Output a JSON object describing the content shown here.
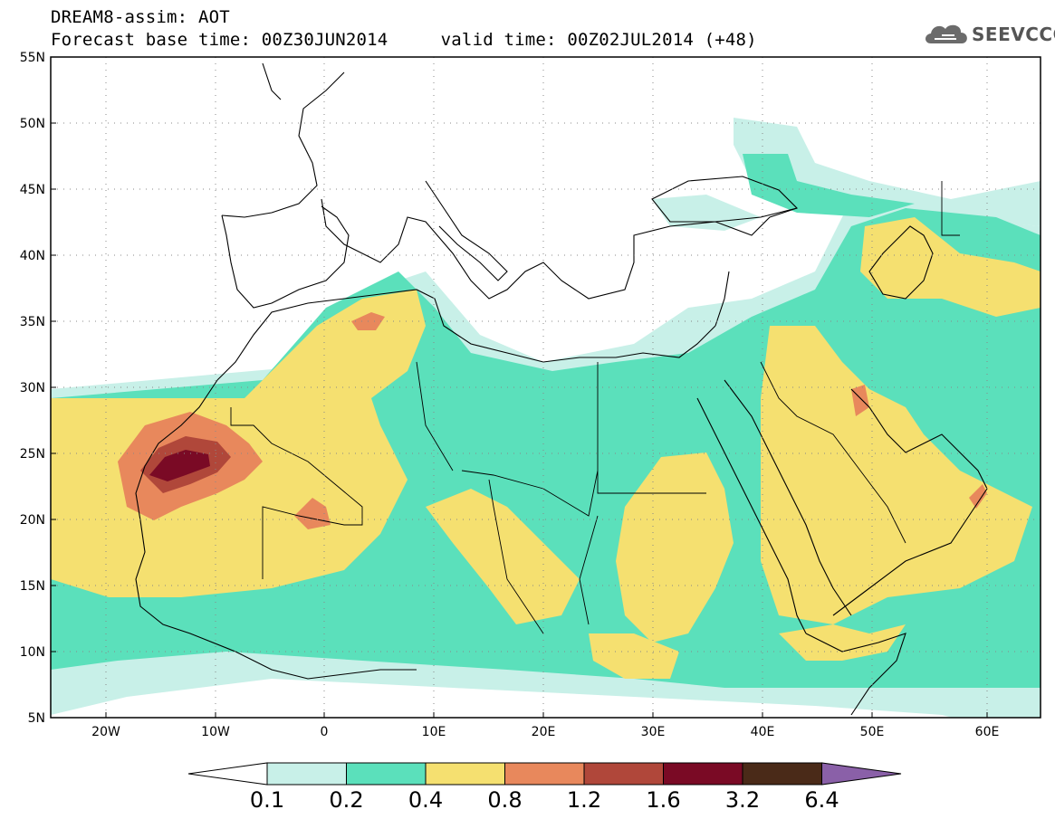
{
  "header": {
    "title": "DREAM8-assim: AOT",
    "base_time_label": "Forecast base time: 00Z30JUN2014",
    "valid_time_label": "valid time: 00Z02JUL2014 (+48)"
  },
  "logo": {
    "text": "SEEVCCC",
    "icon": "cloud-icon"
  },
  "map": {
    "lon_ticks": [
      "20W",
      "10W",
      "0",
      "10E",
      "20E",
      "30E",
      "40E",
      "50E",
      "60E"
    ],
    "lat_ticks": [
      "55N",
      "50N",
      "45N",
      "40N",
      "35N",
      "30N",
      "25N",
      "20N",
      "15N",
      "10N",
      "5N"
    ],
    "extent": {
      "lon": [
        -25,
        65
      ],
      "lat": [
        5,
        55
      ]
    },
    "grid": "dotted"
  },
  "colorbar": {
    "labels": [
      "0.1",
      "0.2",
      "0.4",
      "0.8",
      "1.2",
      "1.6",
      "3.2",
      "6.4"
    ],
    "colors": [
      "#c8f0e8",
      "#5be0bb",
      "#f5e070",
      "#e8885c",
      "#b0473a",
      "#7a0a25",
      "#4a2a18",
      "#8a60a8"
    ],
    "under_color": "#ffffff"
  }
}
